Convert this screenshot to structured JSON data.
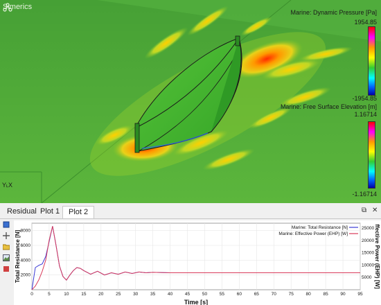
{
  "app": {
    "logo_text": "Simerics"
  },
  "viewport": {
    "colorbars": [
      {
        "title": "Marine: Dynamic Pressure [Pa]",
        "max": "1954.85",
        "min": "-1954.85"
      },
      {
        "title": "Marine: Free Surface Elevation [m]",
        "max": "1.16714",
        "min": "-1.16714"
      }
    ],
    "axes_label": "Y˪X"
  },
  "tabs": [
    {
      "label": "Residual",
      "active": false
    },
    {
      "label": "Plot 1",
      "active": false
    },
    {
      "label": "Plot 2",
      "active": true
    }
  ],
  "window_buttons": {
    "restore": "⧉",
    "close": "✕"
  },
  "toolbar_icons": [
    "select-icon",
    "pan-icon",
    "folder-icon",
    "image-icon",
    "stop-icon"
  ],
  "chart_data": {
    "type": "line",
    "xlabel": "Time [s]",
    "ylabel": "Total Resistance [N]",
    "y2label": "Effective Power (EHP) [W]",
    "y2label_visible": "ffective Power (EHP) [W]",
    "xlim": [
      0,
      95
    ],
    "ylim": [
      0,
      9000
    ],
    "y2lim": [
      0,
      27000
    ],
    "x_ticks": [
      "0",
      "5",
      "10",
      "15",
      "20",
      "25",
      "30",
      "35",
      "40",
      "45",
      "50",
      "55",
      "60",
      "65",
      "70",
      "75",
      "80",
      "85",
      "90",
      "95"
    ],
    "y_ticks": [
      "2000",
      "4000",
      "6000",
      "8000"
    ],
    "y2_ticks": [
      "5000",
      "10000",
      "15000",
      "20000",
      "25000"
    ],
    "legend": [
      "Marine: Total Resistance [N]",
      "Marine: Effective Power (EHP) [W]"
    ],
    "series": [
      {
        "name": "Marine: Total Resistance [N]",
        "color": "#3a3ad6",
        "axis": "left",
        "x": [
          0,
          0.5,
          1,
          2,
          3,
          4,
          5,
          6,
          7,
          8,
          9,
          10,
          11,
          12,
          13,
          14,
          15,
          17,
          19,
          21,
          23,
          25,
          27,
          29,
          31,
          33,
          35,
          40,
          45,
          50,
          55,
          60,
          65,
          70,
          75,
          80,
          85,
          90,
          95
        ],
        "y": [
          0,
          1500,
          3000,
          3300,
          3500,
          4500,
          6500,
          8600,
          6000,
          3200,
          1800,
          1300,
          2000,
          2600,
          3000,
          2900,
          2600,
          2100,
          2500,
          2000,
          2300,
          2100,
          2400,
          2200,
          2400,
          2300,
          2350,
          2300,
          2300,
          2300,
          2300,
          2300,
          2300,
          2300,
          2300,
          2300,
          2300,
          2300,
          2300
        ]
      },
      {
        "name": "Marine: Effective Power (EHP) [W]",
        "color": "#d93a5a",
        "axis": "right",
        "x": [
          0,
          1,
          2,
          3,
          4,
          5,
          6,
          7,
          8,
          9,
          10,
          11,
          12,
          13,
          14,
          15,
          17,
          19,
          21,
          23,
          25,
          27,
          29,
          31,
          33,
          35,
          40,
          45,
          50,
          55,
          60,
          65,
          70,
          75,
          80,
          85,
          90,
          95
        ],
        "y": [
          0,
          1500,
          4000,
          7500,
          12000,
          20000,
          25800,
          18000,
          9600,
          5400,
          3900,
          6000,
          7800,
          9000,
          8700,
          7800,
          6300,
          7500,
          6000,
          6900,
          6300,
          7200,
          6600,
          7200,
          6900,
          7050,
          6900,
          6900,
          6900,
          6900,
          6900,
          6900,
          6900,
          6900,
          6900,
          6900,
          6900,
          6900
        ]
      }
    ]
  }
}
